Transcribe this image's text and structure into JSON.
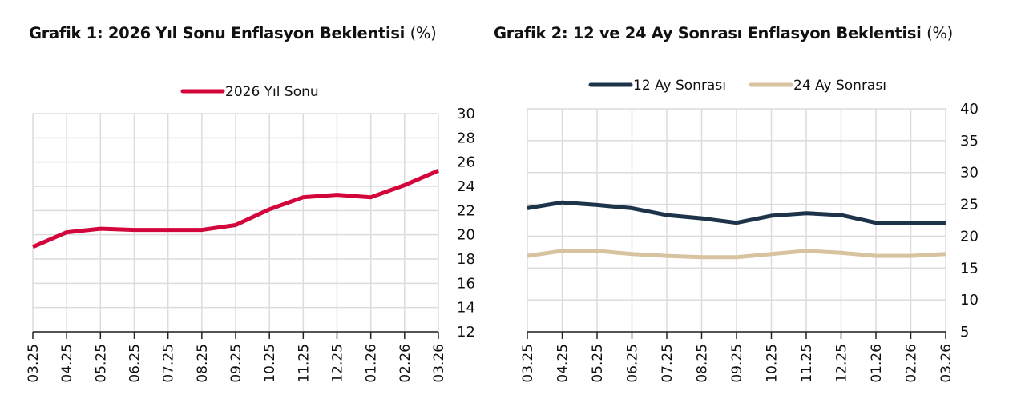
{
  "chart_data": [
    {
      "type": "line",
      "title": "Grafik 1: 2026 Yıl Sonu Enflasyon Beklentisi",
      "title_unit": "(%)",
      "xlabel": "",
      "ylabel": "",
      "ylim": [
        12,
        30
      ],
      "yticks": [
        12,
        14,
        16,
        18,
        20,
        22,
        24,
        26,
        28,
        30
      ],
      "y_axis_position": "right",
      "grid": true,
      "legend_position": "top",
      "categories": [
        "03.25",
        "04.25",
        "05.25",
        "06.25",
        "07.25",
        "08.25",
        "09.25",
        "10.25",
        "11.25",
        "12.25",
        "01.26",
        "02.26",
        "03.26"
      ],
      "series": [
        {
          "name": "2026 Yıl Sonu",
          "color": "#D2063A",
          "values": [
            19.0,
            20.2,
            20.5,
            20.4,
            20.4,
            20.4,
            20.8,
            22.1,
            23.1,
            23.3,
            23.1,
            24.1,
            25.3
          ]
        }
      ]
    },
    {
      "type": "line",
      "title": "Grafik 2: 12 ve 24 Ay Sonrası Enflasyon Beklentisi",
      "title_unit": "(%)",
      "xlabel": "",
      "ylabel": "",
      "ylim": [
        5,
        40
      ],
      "yticks": [
        5,
        10,
        15,
        20,
        25,
        30,
        35,
        40
      ],
      "y_axis_position": "right",
      "grid": true,
      "legend_position": "top",
      "categories": [
        "03.25",
        "04.25",
        "05.25",
        "06.25",
        "07.25",
        "08.25",
        "09.25",
        "10.25",
        "11.25",
        "12.25",
        "01.26",
        "02.26",
        "03.26"
      ],
      "series": [
        {
          "name": "12 Ay Sonrası",
          "color": "#1C3349",
          "values": [
            24.4,
            25.3,
            24.9,
            24.4,
            23.3,
            22.8,
            22.1,
            23.2,
            23.6,
            23.3,
            22.1,
            22.1,
            22.1
          ]
        },
        {
          "name": "24 Ay Sonrası",
          "color": "#D8C3A0",
          "values": [
            16.9,
            17.7,
            17.7,
            17.2,
            16.9,
            16.7,
            16.7,
            17.2,
            17.7,
            17.4,
            16.9,
            16.9,
            17.2
          ]
        }
      ]
    }
  ]
}
